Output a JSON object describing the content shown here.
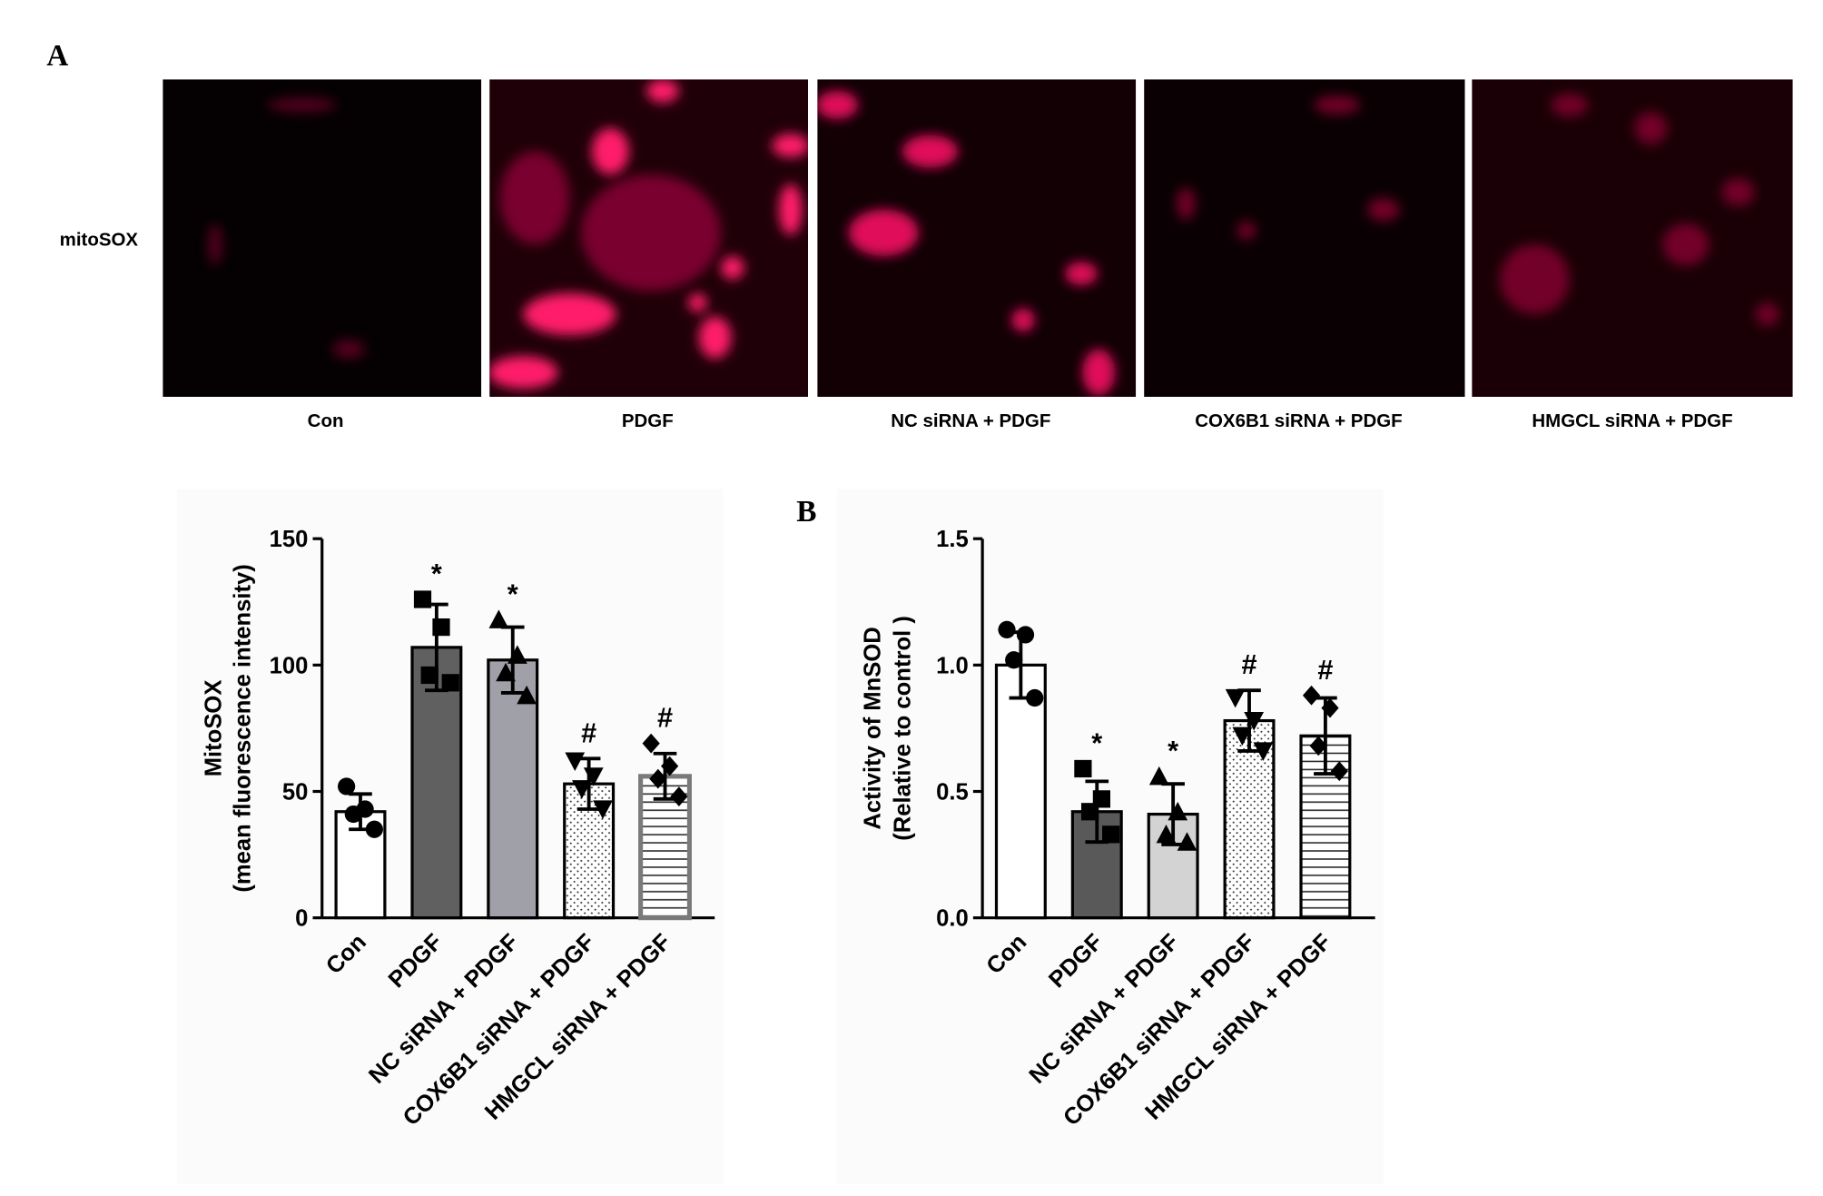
{
  "panel_labels": [
    "A",
    "B"
  ],
  "micrographs": {
    "row_label": "mitoSOX",
    "captions": [
      "Con",
      "PDGF",
      "NC siRNA + PDGF",
      "COX6B1 siRNA + PDGF",
      "HMGCL siRNA + PDGF"
    ]
  },
  "chart_data": [
    {
      "type": "bar",
      "ylabel": [
        "MitoSOX",
        "(mean fluorescence intensity)"
      ],
      "categories": [
        "Con",
        "PDGF",
        "NC siRNA + PDGF",
        "COX6B1 siRNA + PDGF",
        "HMGCL siRNA + PDGF"
      ],
      "values": [
        42,
        107,
        102,
        53,
        56
      ],
      "errors": [
        7,
        17,
        13,
        10,
        9
      ],
      "points": [
        [
          52,
          43,
          41,
          35
        ],
        [
          126,
          115,
          96,
          93
        ],
        [
          118,
          104,
          97,
          88
        ],
        [
          62,
          56,
          51,
          43
        ],
        [
          69,
          60,
          55,
          48
        ]
      ],
      "annotations": [
        null,
        "*",
        "*",
        "#",
        "#"
      ],
      "colors": [
        "#ffffff",
        "#606060",
        "#a0a0a8",
        "#ffffff",
        "#ffffff"
      ],
      "edge_colors": [
        "#000000",
        "#000000",
        "#000000",
        "#000000",
        "#7a7a7a"
      ],
      "fill_patterns": [
        "solid",
        "solid",
        "solid",
        "dots",
        "hlines"
      ],
      "markers": [
        "circle",
        "square",
        "triangle-up",
        "triangle-down",
        "diamond"
      ],
      "ylim": [
        0,
        150
      ],
      "yticks": [
        0,
        50,
        100,
        150
      ]
    },
    {
      "type": "bar",
      "ylabel": [
        "Activity of MnSOD",
        "(Relative to control )"
      ],
      "categories": [
        "Con",
        "PDGF",
        "NC siRNA + PDGF",
        "COX6B1 siRNA + PDGF",
        "HMGCL siRNA + PDGF"
      ],
      "values": [
        1.0,
        0.42,
        0.41,
        0.78,
        0.72
      ],
      "errors": [
        0.13,
        0.12,
        0.12,
        0.12,
        0.15
      ],
      "points": [
        [
          1.14,
          1.12,
          1.02,
          0.87
        ],
        [
          0.59,
          0.47,
          0.42,
          0.33
        ],
        [
          0.56,
          0.42,
          0.33,
          0.3
        ],
        [
          0.87,
          0.78,
          0.72,
          0.66
        ],
        [
          0.88,
          0.83,
          0.68,
          0.58
        ]
      ],
      "annotations": [
        null,
        "*",
        "*",
        "#",
        "#"
      ],
      "colors": [
        "#ffffff",
        "#595959",
        "#d3d3d3",
        "#ffffff",
        "#ffffff"
      ],
      "edge_colors": [
        "#000000",
        "#000000",
        "#000000",
        "#000000",
        "#000000"
      ],
      "fill_patterns": [
        "solid",
        "solid",
        "solid",
        "dots",
        "hlines"
      ],
      "markers": [
        "circle",
        "square",
        "triangle-up",
        "triangle-down",
        "diamond"
      ],
      "ylim": [
        0,
        1.5
      ],
      "yticks": [
        {
          "value": 0,
          "label": "0.0"
        },
        0.5,
        {
          "value": 1,
          "label": "1.0"
        },
        1.5
      ]
    }
  ]
}
